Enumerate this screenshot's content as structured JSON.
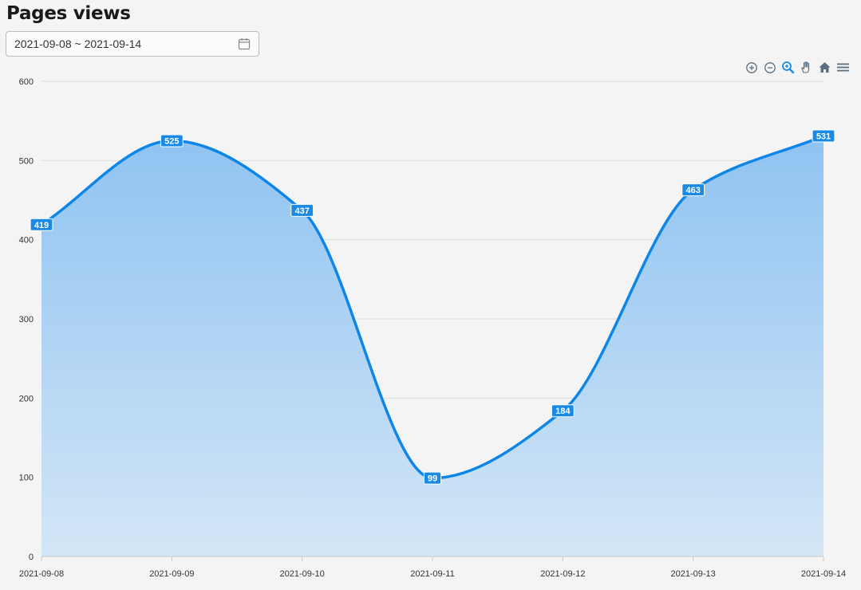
{
  "header": {
    "title": "Pages views"
  },
  "date_picker": {
    "value": "2021-09-08 ~ 2021-09-14",
    "icon": "calendar-icon"
  },
  "toolbar": {
    "tools": [
      "zoom-in-icon",
      "zoom-out-icon",
      "selection-zoom-icon",
      "pan-icon",
      "reset-zoom-icon",
      "menu-icon"
    ],
    "active_tool": "selection-zoom-icon"
  },
  "colors": {
    "line": "#0d86e8",
    "area_top": "#8fc3f2",
    "area_bottom": "#d3e6f6",
    "label_bg": "#1a8ae5",
    "grid": "#dcdcdc",
    "tool_icon": "#5b6f82",
    "tool_active": "#1a8ae5"
  },
  "chart_data": {
    "type": "area",
    "title": "Pages views",
    "categories": [
      "2021-09-08",
      "2021-09-09",
      "2021-09-10",
      "2021-09-11",
      "2021-09-12",
      "2021-09-13",
      "2021-09-14"
    ],
    "series": [
      {
        "values": [
          419,
          525,
          437,
          99,
          184,
          463,
          531
        ]
      }
    ],
    "ylim": [
      0,
      600
    ],
    "yticks": [
      0,
      100,
      200,
      300,
      400,
      500,
      600
    ],
    "grid": true,
    "smooth": true,
    "data_labels": true,
    "legend": "none"
  }
}
